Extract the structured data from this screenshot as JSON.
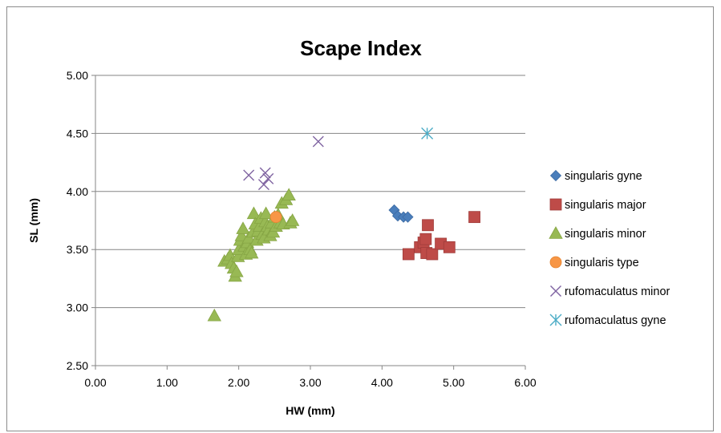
{
  "chart_data": {
    "type": "scatter",
    "title": "Scape Index",
    "xlabel": "HW (mm)",
    "ylabel": "SL (mm)",
    "xlim": [
      0,
      6
    ],
    "ylim": [
      2.5,
      5
    ],
    "x_ticks": [
      "0.00",
      "1.00",
      "2.00",
      "3.00",
      "4.00",
      "5.00",
      "6.00"
    ],
    "y_ticks": [
      "2.50",
      "3.00",
      "3.50",
      "4.00",
      "4.50",
      "5.00"
    ],
    "grid": "horizontal major gridlines",
    "legend_position": "right",
    "series": [
      {
        "name": "singularis gyne",
        "marker": "diamond",
        "color": "#4a7ebb",
        "points": [
          [
            4.17,
            3.84
          ],
          [
            4.22,
            3.79
          ],
          [
            4.3,
            3.78
          ],
          [
            4.36,
            3.78
          ]
        ]
      },
      {
        "name": "singularis major",
        "marker": "square",
        "color": "#be4b48",
        "points": [
          [
            4.37,
            3.46
          ],
          [
            4.53,
            3.52
          ],
          [
            4.58,
            3.56
          ],
          [
            4.61,
            3.59
          ],
          [
            4.62,
            3.47
          ],
          [
            4.64,
            3.71
          ],
          [
            4.7,
            3.46
          ],
          [
            4.82,
            3.55
          ],
          [
            4.94,
            3.52
          ],
          [
            5.29,
            3.78
          ]
        ]
      },
      {
        "name": "singularis minor",
        "marker": "triangle",
        "color": "#98b954",
        "points": [
          [
            1.66,
            2.93
          ],
          [
            1.8,
            3.4
          ],
          [
            1.85,
            3.42
          ],
          [
            1.88,
            3.45
          ],
          [
            1.9,
            3.38
          ],
          [
            1.93,
            3.34
          ],
          [
            1.95,
            3.27
          ],
          [
            1.97,
            3.31
          ],
          [
            1.99,
            3.44
          ],
          [
            2.0,
            3.5
          ],
          [
            2.02,
            3.58
          ],
          [
            2.04,
            3.62
          ],
          [
            2.06,
            3.68
          ],
          [
            2.08,
            3.53
          ],
          [
            2.1,
            3.46
          ],
          [
            2.12,
            3.56
          ],
          [
            2.14,
            3.6
          ],
          [
            2.16,
            3.5
          ],
          [
            2.18,
            3.47
          ],
          [
            2.2,
            3.65
          ],
          [
            2.21,
            3.81
          ],
          [
            2.23,
            3.72
          ],
          [
            2.25,
            3.58
          ],
          [
            2.27,
            3.66
          ],
          [
            2.29,
            3.7
          ],
          [
            2.31,
            3.77
          ],
          [
            2.33,
            3.63
          ],
          [
            2.35,
            3.6
          ],
          [
            2.37,
            3.74
          ],
          [
            2.38,
            3.81
          ],
          [
            2.4,
            3.7
          ],
          [
            2.42,
            3.67
          ],
          [
            2.44,
            3.62
          ],
          [
            2.46,
            3.73
          ],
          [
            2.48,
            3.65
          ],
          [
            2.5,
            3.78
          ],
          [
            2.52,
            3.7
          ],
          [
            2.55,
            3.8
          ],
          [
            2.58,
            3.73
          ],
          [
            2.6,
            3.9
          ],
          [
            2.62,
            3.72
          ],
          [
            2.66,
            3.93
          ],
          [
            2.7,
            3.97
          ],
          [
            2.72,
            3.73
          ],
          [
            2.75,
            3.75
          ]
        ]
      },
      {
        "name": "singularis type",
        "marker": "circle",
        "color": "#f79646",
        "points": [
          [
            2.52,
            3.78
          ]
        ]
      },
      {
        "name": "rufomaculatus minor",
        "marker": "x",
        "color": "#7f63a1",
        "points": [
          [
            2.14,
            4.14
          ],
          [
            2.35,
            4.06
          ],
          [
            2.37,
            4.16
          ],
          [
            2.41,
            4.11
          ],
          [
            3.11,
            4.43
          ]
        ]
      },
      {
        "name": "rufomaculatus gyne",
        "marker": "star",
        "color": "#4bacc6",
        "points": [
          [
            4.63,
            4.5
          ]
        ]
      }
    ]
  }
}
